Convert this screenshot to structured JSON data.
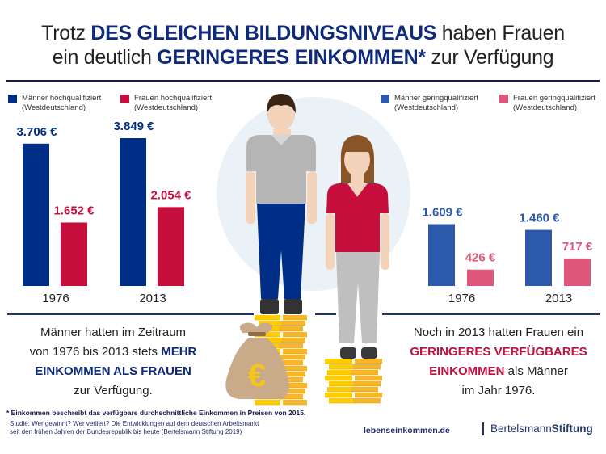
{
  "headline": {
    "line1_pre": "Trotz ",
    "line1_em": "DES GLEICHEN BILDUNGSNIVEAUS",
    "line1_post": " haben Frauen",
    "line2_pre": "ein deutlich ",
    "line2_em": "GERINGERES EINKOMMEN*",
    "line2_post": " zur Verfügung"
  },
  "colors": {
    "men_high": "#002e87",
    "women_high": "#c70f3e",
    "men_low": "#2d59ad",
    "women_low": "#de577a",
    "title_blue": "#0f2a78",
    "rule": "#141a4a"
  },
  "chart_data": [
    {
      "type": "bar",
      "title": "Hochqualifiziert (Westdeutschland)",
      "categories": [
        "1976",
        "2013"
      ],
      "series": [
        {
          "name": "Männer hochqualifiziert (Westdeutschland)",
          "values": [
            3706,
            3849
          ],
          "labels": [
            "3.706 €",
            "3.849 €"
          ],
          "color": "#002e87"
        },
        {
          "name": "Frauen hochqualifiziert (Westdeutschland)",
          "values": [
            1652,
            2054
          ],
          "labels": [
            "1.652 €",
            "2.054 €"
          ],
          "color": "#c70f3e"
        }
      ],
      "unit": "€",
      "xlabel": "",
      "ylabel": "",
      "ylim": [
        0,
        3849
      ],
      "grid": false,
      "legend": "top"
    },
    {
      "type": "bar",
      "title": "Geringqualifiziert (Westdeutschland)",
      "categories": [
        "1976",
        "2013"
      ],
      "series": [
        {
          "name": "Männer geringqualifiziert (Westdeutschland)",
          "values": [
            1609,
            1460
          ],
          "labels": [
            "1.609 €",
            "1.460 €"
          ],
          "color": "#2d59ad"
        },
        {
          "name": "Frauen geringqualifiziert (Westdeutschland)",
          "values": [
            426,
            717
          ],
          "labels": [
            "426 €",
            "717 €"
          ],
          "color": "#de577a"
        }
      ],
      "unit": "€",
      "xlabel": "",
      "ylabel": "",
      "ylim": [
        0,
        3849
      ],
      "grid": false,
      "legend": "top"
    }
  ],
  "legend": {
    "men_high_line1": "Männer hochqualifiziert",
    "women_high_line1": "Frauen hochqualifiziert",
    "men_low_line1": "Männer geringqualifiziert",
    "women_low_line1": "Frauen geringqualifiziert",
    "region": "(Westdeutschland)"
  },
  "caption_left": {
    "l1": "Männer hatten im Zeitraum",
    "l2_pre": "von 1976 bis 2013 stets ",
    "l2_em": "MEHR",
    "l3_em": "EINKOMMEN ALS FRAUEN",
    "l4": "zur Verfügung."
  },
  "caption_right": {
    "l1": "Noch in 2013 hatten Frauen ein",
    "l2_em": "GERINGERES VERFÜGBARES",
    "l3_em": "EINKOMMEN",
    "l3_post": " als Männer",
    "l4": "im Jahr 1976."
  },
  "illustration": {
    "coin_symbol": "€"
  },
  "footer": {
    "note": "* Einkommen beschreibt das verfügbare durchschnittliche Einkommen in Preisen von 2015.",
    "study_l1": "Studie: Wer gewinnt? Wer verliert? Die Entwicklungen auf dem deutschen Arbeitsmarkt",
    "study_l2": "seit den frühen Jahren der Bundesrepublik bis heute (Bertelsmann Stiftung 2019)",
    "site": "lebenseinkommen.de",
    "brand_a": "Bertelsmann",
    "brand_b": "Stiftung"
  }
}
